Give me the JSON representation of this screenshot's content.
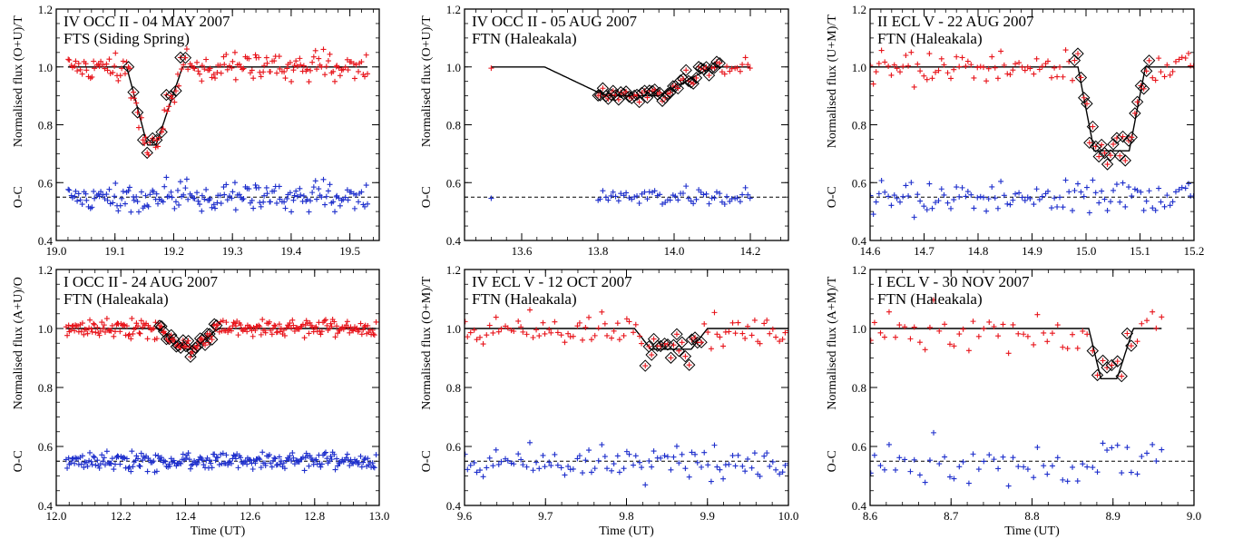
{
  "figure": {
    "x_label": "Time (UT)"
  },
  "chart_data": [
    {
      "type": "scatter",
      "row": 0,
      "col": 0,
      "title": "IV OCC II - 04 MAY 2007",
      "subtitle": "FTS (Siding Spring)",
      "ylabel": "Normalised flux (O+U)/T",
      "oc_label": "O-C",
      "xlim": [
        19.0,
        19.55
      ],
      "ylim": [
        0.4,
        1.2
      ],
      "xticks": [
        19.0,
        19.1,
        19.2,
        19.3,
        19.4,
        19.5
      ],
      "xtick_labels": [
        "19.0",
        "19.1",
        "19.2",
        "19.3",
        "19.4",
        "19.5"
      ],
      "yticks": [
        0.4,
        0.6,
        0.8,
        1.0,
        1.2
      ],
      "ytick_labels": [
        "0.4",
        "0.6",
        "0.8",
        "1.0",
        "1.2"
      ],
      "data_range": [
        19.02,
        19.53
      ],
      "oc_level": 0.55,
      "model": {
        "t1": 19.12,
        "t2": 19.155,
        "t3": 19.17,
        "t4": 19.215,
        "depth": 0.27,
        "baseline": 1.0,
        "x_start": 19.02,
        "x_end": 19.53
      },
      "n_points": 190,
      "noise": 0.025,
      "diamond_range": [
        19.12,
        19.22
      ],
      "diamond_step": 3,
      "colors": {
        "data": "#e8141b",
        "residual": "#1d2ecc",
        "model": "#000000"
      }
    },
    {
      "type": "scatter",
      "row": 0,
      "col": 1,
      "title": "IV OCC II - 05 AUG 2007",
      "subtitle": "FTN (Haleakala)",
      "ylabel": "Normalised flux (O+U)/T",
      "oc_label": "O-C",
      "xlim": [
        13.45,
        14.3
      ],
      "ylim": [
        0.4,
        1.2
      ],
      "xticks": [
        13.6,
        13.8,
        14.0,
        14.2
      ],
      "xtick_labels": [
        "13.6",
        "13.8",
        "14.0",
        "14.2"
      ],
      "yticks": [
        0.4,
        0.6,
        0.8,
        1.0,
        1.2
      ],
      "ytick_labels": [
        "0.4",
        "0.6",
        "0.8",
        "1.0",
        "1.2"
      ],
      "data_range": [
        13.8,
        14.2
      ],
      "single_points": [
        13.52
      ],
      "oc_level": 0.55,
      "model": {
        "t1": 13.66,
        "t2": 13.82,
        "t3": 13.96,
        "t4": 14.1,
        "depth": 0.1,
        "baseline": 1.0,
        "x_start": 13.52,
        "x_end": 14.2
      },
      "n_points": 60,
      "noise": 0.015,
      "diamond_range": [
        13.8,
        14.12
      ],
      "diamond_step": 1,
      "colors": {
        "data": "#e8141b",
        "residual": "#1d2ecc",
        "model": "#000000"
      }
    },
    {
      "type": "scatter",
      "row": 0,
      "col": 2,
      "title": "II ECL V - 22 AUG 2007",
      "subtitle": "FTN (Haleakala)",
      "ylabel": "Normalised flux (U+M)/T",
      "oc_label": "O-C",
      "xlim": [
        14.6,
        15.2
      ],
      "ylim": [
        0.4,
        1.2
      ],
      "xticks": [
        14.6,
        14.7,
        14.8,
        14.9,
        15.0,
        15.1,
        15.2
      ],
      "xtick_labels": [
        "14.6",
        "14.7",
        "14.8",
        "14.9",
        "15.0",
        "15.1",
        "15.2"
      ],
      "yticks": [
        0.4,
        0.6,
        0.8,
        1.0,
        1.2
      ],
      "ytick_labels": [
        "0.4",
        "0.6",
        "0.8",
        "1.0",
        "1.2"
      ],
      "data_range": [
        14.6,
        15.2
      ],
      "oc_level": 0.55,
      "model": {
        "t1": 14.985,
        "t2": 15.015,
        "t3": 15.08,
        "t4": 15.11,
        "depth": 0.29,
        "baseline": 1.0,
        "x_start": 14.6,
        "x_end": 15.2
      },
      "n_points": 110,
      "noise": 0.03,
      "diamond_range": [
        14.975,
        15.12
      ],
      "diamond_step": 1,
      "colors": {
        "data": "#e8141b",
        "residual": "#1d2ecc",
        "model": "#000000"
      }
    },
    {
      "type": "scatter",
      "row": 1,
      "col": 0,
      "title": "I OCC II - 24 AUG 2007",
      "subtitle": "FTN (Haleakala)",
      "ylabel": "Normalised flux (A+U)/O",
      "oc_label": "O-C",
      "xlim": [
        12.0,
        13.0
      ],
      "ylim": [
        0.4,
        1.2
      ],
      "xticks": [
        12.0,
        12.2,
        12.4,
        12.6,
        12.8,
        13.0
      ],
      "xtick_labels": [
        "12.0",
        "12.2",
        "12.4",
        "12.6",
        "12.8",
        "13.0"
      ],
      "yticks": [
        0.4,
        0.6,
        0.8,
        1.0,
        1.2
      ],
      "ytick_labels": [
        "0.4",
        "0.6",
        "0.8",
        "1.0",
        "1.2"
      ],
      "data_range": [
        12.03,
        12.99
      ],
      "oc_level": 0.55,
      "model": {
        "t1": 12.32,
        "t2": 12.4,
        "t3": 12.42,
        "t4": 12.5,
        "depth": 0.07,
        "baseline": 1.0,
        "x_start": 12.03,
        "x_end": 12.99
      },
      "n_points": 260,
      "noise": 0.015,
      "diamond_range": [
        12.32,
        12.5
      ],
      "diamond_step": 2,
      "colors": {
        "data": "#e8141b",
        "residual": "#1d2ecc",
        "model": "#000000"
      }
    },
    {
      "type": "scatter",
      "row": 1,
      "col": 1,
      "title": "IV ECL V - 12 OCT 2007",
      "subtitle": "FTN (Haleakala)",
      "ylabel": "Normalised flux (O+M)/T",
      "oc_label": "O-C",
      "xlim": [
        9.6,
        10.0
      ],
      "ylim": [
        0.4,
        1.2
      ],
      "xticks": [
        9.6,
        9.7,
        9.8,
        9.9,
        10.0
      ],
      "xtick_labels": [
        "9.6",
        "9.7",
        "9.8",
        "9.9",
        "10.0"
      ],
      "yticks": [
        0.4,
        0.6,
        0.8,
        1.0,
        1.2
      ],
      "ytick_labels": [
        "0.4",
        "0.6",
        "0.8",
        "1.0",
        "1.2"
      ],
      "data_range": [
        9.6,
        10.0
      ],
      "oc_level": 0.55,
      "model": {
        "t1": 9.81,
        "t2": 9.83,
        "t3": 9.88,
        "t4": 9.9,
        "depth": 0.07,
        "baseline": 1.0,
        "x_start": 9.6,
        "x_end": 10.0
      },
      "n_points": 105,
      "noise": 0.03,
      "diamond_range": [
        9.82,
        9.895
      ],
      "diamond_step": 1,
      "colors": {
        "data": "#e8141b",
        "residual": "#1d2ecc",
        "model": "#000000"
      }
    },
    {
      "type": "scatter",
      "row": 1,
      "col": 2,
      "title": "I ECL V - 30 NOV 2007",
      "subtitle": "FTN (Haleakala)",
      "ylabel": "Normalised flux (A+M)/T",
      "oc_label": "O-C",
      "xlim": [
        8.6,
        9.0
      ],
      "ylim": [
        0.4,
        1.2
      ],
      "xticks": [
        8.6,
        8.7,
        8.8,
        8.9,
        9.0
      ],
      "xtick_labels": [
        "8.6",
        "8.7",
        "8.8",
        "8.9",
        "9.0"
      ],
      "yticks": [
        0.4,
        0.6,
        0.8,
        1.0,
        1.2
      ],
      "ytick_labels": [
        "0.4",
        "0.6",
        "0.8",
        "1.0",
        "1.2"
      ],
      "data_range": [
        8.6,
        8.96
      ],
      "oc_level": 0.55,
      "model": {
        "t1": 8.87,
        "t2": 8.885,
        "t3": 8.905,
        "t4": 8.925,
        "depth": 0.17,
        "baseline": 1.0,
        "x_start": 8.6,
        "x_end": 8.96
      },
      "n_points": 60,
      "noise": 0.04,
      "diamond_range": [
        8.87,
        8.93
      ],
      "diamond_step": 1,
      "colors": {
        "data": "#e8141b",
        "residual": "#1d2ecc",
        "model": "#000000"
      }
    }
  ]
}
